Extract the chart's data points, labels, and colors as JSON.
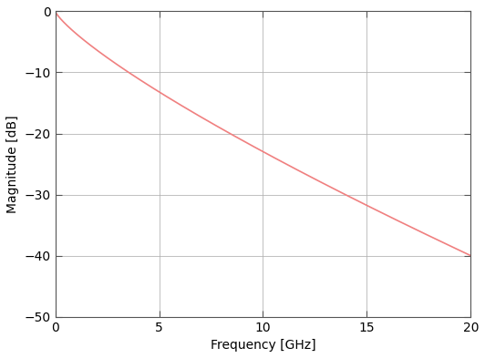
{
  "xlabel": "Frequency [GHz]",
  "ylabel": "Magnitude [dB]",
  "xlim": [
    0,
    20
  ],
  "ylim": [
    -50,
    0
  ],
  "xticks": [
    0,
    5,
    10,
    15,
    20
  ],
  "yticks": [
    0,
    -10,
    -20,
    -30,
    -40,
    -50
  ],
  "line_color": "#f08080",
  "line_width": 1.2,
  "background_color": "#ffffff",
  "grid_color": "#b0b0b0",
  "freq_start": 0.001,
  "freq_end": 20,
  "loss_exponent": 0.75,
  "loss_at_20GHz": -40.0,
  "xlabel_fontsize": 10,
  "ylabel_fontsize": 10,
  "tick_fontsize": 10,
  "fig_width": 5.32,
  "fig_height": 3.93,
  "dpi": 100
}
